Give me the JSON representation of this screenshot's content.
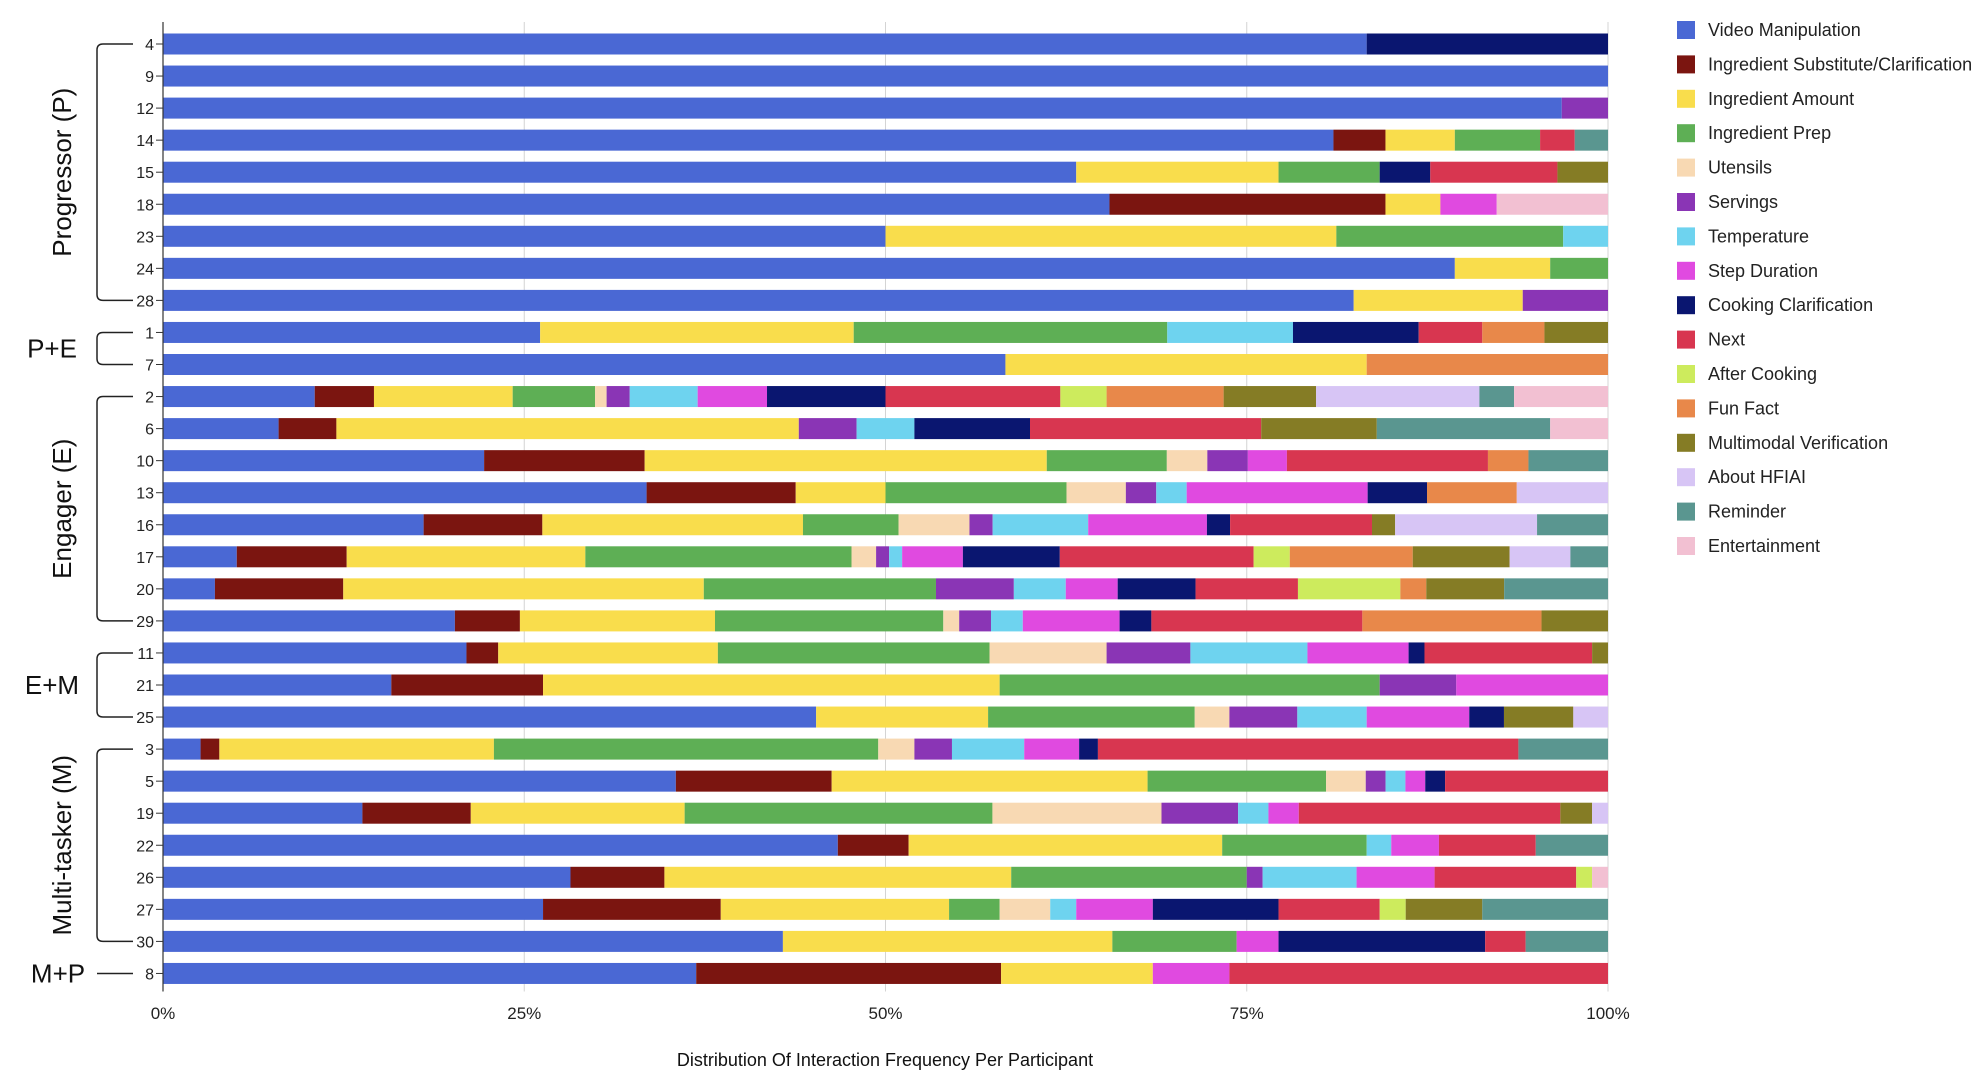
{
  "chart_data": {
    "type": "bar",
    "orientation": "horizontal",
    "stacked": true,
    "normalized": true,
    "xlabel": "Distribution Of Interaction Frequency Per Participant",
    "x_ticks": [
      "0%",
      "25%",
      "50%",
      "75%",
      "100%"
    ],
    "xlim": [
      0,
      100
    ],
    "grid": true,
    "legend_position": "right",
    "series": [
      {
        "name": "Video Manipulation",
        "color": "#4a68d4"
      },
      {
        "name": "Ingredient Substitute/Clarification",
        "color": "#7b1510"
      },
      {
        "name": "Ingredient Amount",
        "color": "#f9dd4c"
      },
      {
        "name": "Ingredient Prep",
        "color": "#5eaf55"
      },
      {
        "name": "Utensils",
        "color": "#f8d9b3"
      },
      {
        "name": "Servings",
        "color": "#8a35b5"
      },
      {
        "name": "Temperature",
        "color": "#6ed3ef"
      },
      {
        "name": "Step Duration",
        "color": "#e04ae0"
      },
      {
        "name": "Cooking Clarification",
        "color": "#0a1670"
      },
      {
        "name": "Next",
        "color": "#d83650"
      },
      {
        "name": "After Cooking",
        "color": "#cdeb5d"
      },
      {
        "name": "Fun Fact",
        "color": "#e8884a"
      },
      {
        "name": "Multimodal Verification",
        "color": "#857c25"
      },
      {
        "name": "About HFIAI",
        "color": "#d7c5f5"
      },
      {
        "name": "Reminder",
        "color": "#5a9690"
      },
      {
        "name": "Entertainment",
        "color": "#f2c0d2"
      }
    ],
    "groups": [
      {
        "label": "Progressor (P)",
        "rows": [
          "4",
          "9",
          "12",
          "14",
          "15",
          "18",
          "23",
          "24",
          "28"
        ]
      },
      {
        "label": "P+E",
        "rows": [
          "1",
          "7"
        ]
      },
      {
        "label": "Engager (E)",
        "rows": [
          "2",
          "6",
          "10",
          "13",
          "16",
          "17",
          "20",
          "29"
        ]
      },
      {
        "label": "E+M",
        "rows": [
          "11",
          "21",
          "25"
        ]
      },
      {
        "label": "Multi-tasker (M)",
        "rows": [
          "3",
          "5",
          "19",
          "22",
          "26",
          "27",
          "30"
        ]
      },
      {
        "label": "M+P",
        "rows": [
          "8"
        ]
      }
    ],
    "rows": [
      {
        "participant": "4",
        "values": [
          83.3,
          0,
          0,
          0,
          0,
          0,
          0,
          0,
          16.7,
          0,
          0,
          0,
          0,
          0,
          0,
          0
        ]
      },
      {
        "participant": "9",
        "values": [
          100,
          0,
          0,
          0,
          0,
          0,
          0,
          0,
          0,
          0,
          0,
          0,
          0,
          0,
          0,
          0
        ]
      },
      {
        "participant": "12",
        "values": [
          96.8,
          0,
          0,
          0,
          0,
          3.2,
          0,
          0,
          0,
          0,
          0,
          0,
          0,
          0,
          0,
          0
        ]
      },
      {
        "participant": "14",
        "values": [
          81,
          3.6,
          4.8,
          5.9,
          0,
          0,
          0,
          0,
          0,
          2.4,
          0,
          0,
          0,
          0,
          2.3,
          0
        ]
      },
      {
        "participant": "15",
        "values": [
          63.2,
          0,
          14,
          7,
          0,
          0,
          0,
          0,
          3.5,
          8.8,
          0,
          0,
          3.5,
          0,
          0,
          0
        ]
      },
      {
        "participant": "18",
        "values": [
          65.5,
          19.1,
          3.8,
          0,
          0,
          0,
          0,
          3.9,
          0,
          0,
          0,
          0,
          0,
          0,
          0,
          7.7
        ]
      },
      {
        "participant": "23",
        "values": [
          50,
          0,
          31.2,
          15.7,
          0,
          0,
          3.1,
          0,
          0,
          0,
          0,
          0,
          0,
          0,
          0,
          0
        ]
      },
      {
        "participant": "24",
        "values": [
          89.4,
          0,
          6.6,
          4,
          0,
          0,
          0,
          0,
          0,
          0,
          0,
          0,
          0,
          0,
          0,
          0
        ]
      },
      {
        "participant": "28",
        "values": [
          82.4,
          0,
          11.7,
          0,
          0,
          5.9,
          0,
          0,
          0,
          0,
          0,
          0,
          0,
          0,
          0,
          0
        ]
      },
      {
        "participant": "1",
        "values": [
          26.1,
          0,
          21.7,
          21.7,
          0,
          0,
          8.7,
          0,
          8.7,
          4.4,
          0,
          4.3,
          4.4,
          0,
          0,
          0
        ]
      },
      {
        "participant": "7",
        "values": [
          58.3,
          0,
          25,
          0,
          0,
          0,
          0,
          0,
          0,
          0,
          0,
          16.7,
          0,
          0,
          0,
          0
        ]
      },
      {
        "participant": "2",
        "values": [
          10.5,
          4.1,
          9.6,
          5.7,
          0.8,
          1.6,
          4.7,
          4.8,
          8.2,
          12.1,
          3.2,
          8.1,
          6.4,
          11.3,
          2.4,
          6.5
        ]
      },
      {
        "participant": "6",
        "values": [
          8,
          4,
          32,
          0,
          0,
          4,
          4,
          0,
          8,
          16,
          0,
          0,
          8,
          0,
          12,
          4
        ]
      },
      {
        "participant": "10",
        "values": [
          22.2,
          11.1,
          27.8,
          8.3,
          2.8,
          2.8,
          0,
          2.7,
          0,
          13.9,
          0,
          2.8,
          0,
          0,
          5.5,
          0
        ]
      },
      {
        "participant": "13",
        "values": [
          33.4,
          10.3,
          6.2,
          12.5,
          4.1,
          2.1,
          2.1,
          12.5,
          4.1,
          0,
          0,
          6.2,
          0,
          6.3,
          0,
          0
        ]
      },
      {
        "participant": "16",
        "values": [
          18,
          8.2,
          18,
          6.6,
          4.9,
          1.6,
          6.6,
          8.2,
          1.6,
          9.8,
          0,
          0,
          1.6,
          9.8,
          4.9,
          0
        ]
      },
      {
        "participant": "17",
        "values": [
          5.1,
          7.6,
          16.5,
          18.4,
          1.7,
          0.9,
          0.9,
          4.2,
          6.7,
          13.4,
          2.5,
          8.5,
          6.7,
          4.2,
          2.6,
          0
        ]
      },
      {
        "participant": "20",
        "values": [
          3.6,
          8.9,
          25,
          16.1,
          0,
          5.4,
          3.6,
          3.6,
          5.4,
          7.1,
          7.1,
          1.8,
          5.4,
          0,
          7.2,
          0
        ]
      },
      {
        "participant": "29",
        "values": [
          20.2,
          4.5,
          13.5,
          15.8,
          1.1,
          2.2,
          2.2,
          6.7,
          2.2,
          14.6,
          0,
          12.4,
          4.6,
          0,
          0,
          0
        ]
      },
      {
        "participant": "11",
        "values": [
          21,
          2.2,
          15.2,
          18.8,
          8.1,
          5.8,
          8.1,
          7,
          1.1,
          11.6,
          0,
          0,
          1.1,
          0,
          0,
          0
        ]
      },
      {
        "participant": "21",
        "values": [
          15.8,
          10.5,
          31.6,
          26.3,
          0,
          5.3,
          0,
          10.5,
          0,
          0,
          0,
          0,
          0,
          0,
          0,
          0
        ]
      },
      {
        "participant": "25",
        "values": [
          45.2,
          0,
          11.9,
          14.3,
          2.4,
          4.7,
          4.8,
          7.1,
          2.4,
          0,
          0,
          0,
          4.8,
          2.4,
          0,
          0
        ]
      },
      {
        "participant": "3",
        "values": [
          2.6,
          1.3,
          19,
          26.6,
          2.5,
          2.6,
          5,
          3.8,
          1.3,
          29.1,
          0,
          0,
          0,
          0,
          6.2,
          0
        ]
      },
      {
        "participant": "5",
        "values": [
          36.2,
          11,
          22.3,
          12.6,
          2.8,
          1.4,
          1.4,
          1.4,
          1.4,
          11.5,
          0,
          0,
          0,
          0,
          0,
          0
        ]
      },
      {
        "participant": "19",
        "values": [
          13.8,
          7.5,
          14.8,
          21.3,
          11.7,
          5.3,
          2.1,
          2.1,
          0,
          18.1,
          0,
          0,
          2.2,
          1.1,
          0,
          0
        ]
      },
      {
        "participant": "22",
        "values": [
          46.7,
          4.9,
          21.7,
          10,
          0,
          0,
          1.7,
          3.3,
          0,
          6.7,
          0,
          0,
          0,
          0,
          5,
          0
        ]
      },
      {
        "participant": "26",
        "values": [
          28.2,
          6.5,
          24,
          16.3,
          0,
          1.1,
          6.5,
          5.4,
          0,
          9.8,
          1.1,
          0,
          0,
          0,
          0,
          1.1
        ]
      },
      {
        "participant": "27",
        "values": [
          26.3,
          12.3,
          15.8,
          3.5,
          3.5,
          0,
          1.8,
          5.3,
          8.7,
          7,
          1.8,
          0,
          5.3,
          0,
          8.7,
          0
        ]
      },
      {
        "participant": "30",
        "values": [
          42.9,
          0,
          22.8,
          8.6,
          0,
          0,
          0,
          2.9,
          14.3,
          2.8,
          0,
          0,
          0,
          0,
          5.7,
          0
        ]
      },
      {
        "participant": "8",
        "values": [
          36.9,
          21.1,
          10.5,
          0,
          0,
          0,
          0,
          5.3,
          0,
          26.2,
          0,
          0,
          0,
          0,
          0,
          0
        ]
      }
    ]
  }
}
